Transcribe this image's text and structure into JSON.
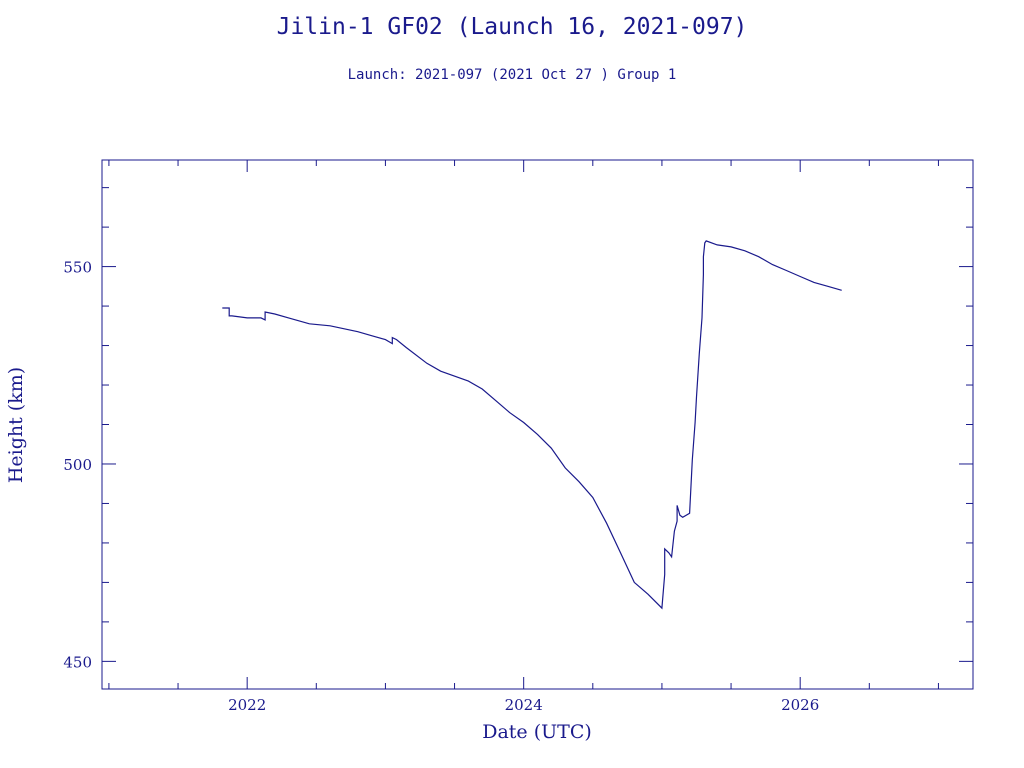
{
  "chart_data": {
    "type": "line",
    "title": "Jilin-1 GF02 (Launch 16, 2021-097)",
    "subtitle": "Launch: 2021-097  (2021 Oct 27 )  Group 1",
    "xlabel": "Date (UTC)",
    "ylabel": "Height (km)",
    "xlim": [
      2020.95,
      2027.25
    ],
    "ylim": [
      443,
      577
    ],
    "x_ticks": [
      "2022",
      "2024",
      "2026"
    ],
    "y_ticks": [
      "450",
      "500",
      "550"
    ],
    "grid": false,
    "color": "#1a1a8c",
    "series": [
      {
        "x": [
          2021.82,
          2021.87,
          2021.87,
          2021.89,
          2021.89,
          2022.0,
          2022.1,
          2022.13,
          2022.13,
          2022.2,
          2022.3,
          2022.45,
          2022.6,
          2022.8,
          2022.9,
          2023.0,
          2023.05,
          2023.05,
          2023.08,
          2023.15,
          2023.3,
          2023.4,
          2023.6,
          2023.7,
          2023.8,
          2023.9,
          2024.0,
          2024.1,
          2024.2,
          2024.3,
          2024.4,
          2024.5,
          2024.6,
          2024.7,
          2024.8,
          2024.9,
          2025.0,
          2025.02,
          2025.02,
          2025.05,
          2025.07,
          2025.09,
          2025.11,
          2025.11,
          2025.13,
          2025.15,
          2025.2,
          2025.22,
          2025.24,
          2025.25,
          2025.27,
          2025.29,
          2025.3,
          2025.3,
          2025.31,
          2025.32,
          2025.4,
          2025.5,
          2025.6,
          2025.7,
          2025.8,
          2025.9,
          2026.0,
          2026.1,
          2026.2,
          2026.3
        ],
        "y": [
          539.5,
          539.5,
          537.5,
          537.5,
          537.5,
          537.0,
          537.0,
          536.5,
          538.5,
          538.0,
          537.0,
          535.5,
          535.0,
          533.5,
          532.5,
          531.5,
          530.5,
          532.0,
          531.5,
          529.5,
          525.5,
          523.5,
          521.0,
          519.0,
          516.0,
          513.0,
          510.5,
          507.5,
          504.0,
          499.0,
          495.5,
          491.5,
          485.0,
          477.5,
          470.0,
          467.0,
          463.5,
          472.0,
          478.5,
          477.5,
          476.5,
          483.0,
          485.5,
          489.5,
          487.0,
          486.5,
          487.5,
          501.0,
          510.5,
          517.0,
          528.0,
          537.0,
          548.0,
          552.5,
          556.0,
          556.5,
          555.5,
          555.0,
          554.0,
          552.5,
          550.5,
          549.0,
          547.5,
          546.0,
          545.0,
          544.0
        ]
      }
    ]
  }
}
